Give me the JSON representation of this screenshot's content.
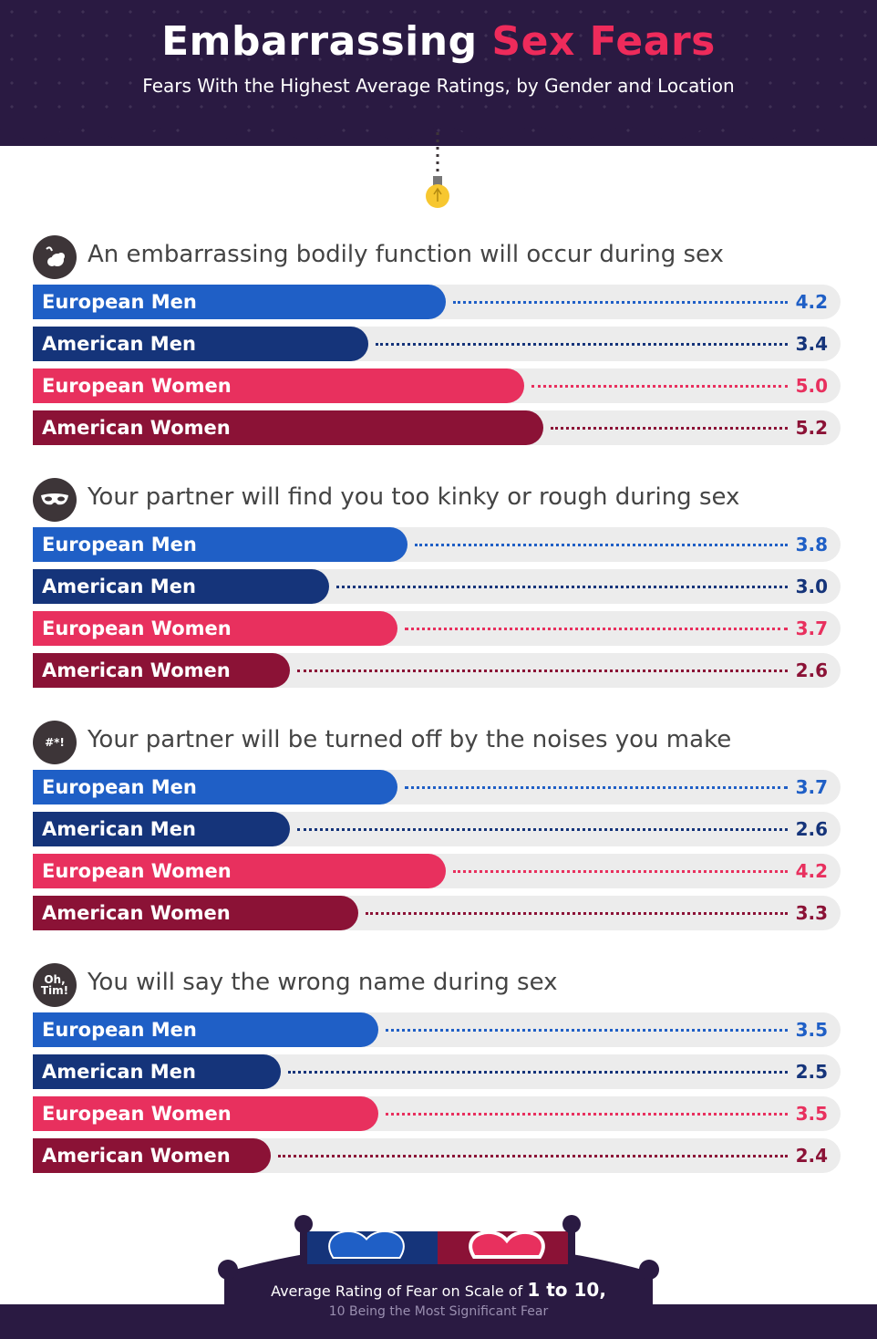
{
  "header": {
    "title_main": "Embarrassing",
    "title_accent": "Sex Fears",
    "subtitle": "Fears With the Highest Average Ratings, by Gender and Location"
  },
  "colors": {
    "european_men": "#1f5fc6",
    "american_men": "#15347a",
    "european_women": "#e8305e",
    "american_women": "#8b1236",
    "header_bg": "#2a1a42"
  },
  "chart_data": {
    "type": "bar",
    "orientation": "horizontal",
    "scale": [
      0,
      10
    ],
    "groups": [
      {
        "icon": "fart-cloud-icon",
        "question": "An embarrassing bodily function will occur during sex",
        "series": [
          {
            "name": "European Men",
            "value": 4.2,
            "label": "4.2"
          },
          {
            "name": "American Men",
            "value": 3.4,
            "label": "3.4"
          },
          {
            "name": "European Women",
            "value": 5.0,
            "label": "5.0"
          },
          {
            "name": "American Women",
            "value": 5.2,
            "label": "5.2"
          }
        ]
      },
      {
        "icon": "mask-icon",
        "question": "Your partner will find you too kinky or rough during sex",
        "series": [
          {
            "name": "European Men",
            "value": 3.8,
            "label": "3.8"
          },
          {
            "name": "American Men",
            "value": 3.0,
            "label": "3.0"
          },
          {
            "name": "European Women",
            "value": 3.7,
            "label": "3.7"
          },
          {
            "name": "American Women",
            "value": 2.6,
            "label": "2.6"
          }
        ]
      },
      {
        "icon": "speech-bubble-icon",
        "icon_text": "#*!",
        "question": "Your partner will be turned off by the noises you make",
        "series": [
          {
            "name": "European Men",
            "value": 3.7,
            "label": "3.7"
          },
          {
            "name": "American Men",
            "value": 2.6,
            "label": "2.6"
          },
          {
            "name": "European Women",
            "value": 4.2,
            "label": "4.2"
          },
          {
            "name": "American Women",
            "value": 3.3,
            "label": "3.3"
          }
        ]
      },
      {
        "icon": "oh-tim-icon",
        "icon_text": "Oh, Tim!",
        "question": "You will say the wrong name during sex",
        "series": [
          {
            "name": "European Men",
            "value": 3.5,
            "label": "3.5"
          },
          {
            "name": "American Men",
            "value": 2.5,
            "label": "2.5"
          },
          {
            "name": "European Women",
            "value": 3.5,
            "label": "3.5"
          },
          {
            "name": "American Women",
            "value": 2.4,
            "label": "2.4"
          }
        ]
      }
    ]
  },
  "footer": {
    "line1_prefix": "Average Rating of Fear on Scale of",
    "line1_bold": "1 to 10,",
    "line2": "10 Being the Most Significant Fear"
  }
}
